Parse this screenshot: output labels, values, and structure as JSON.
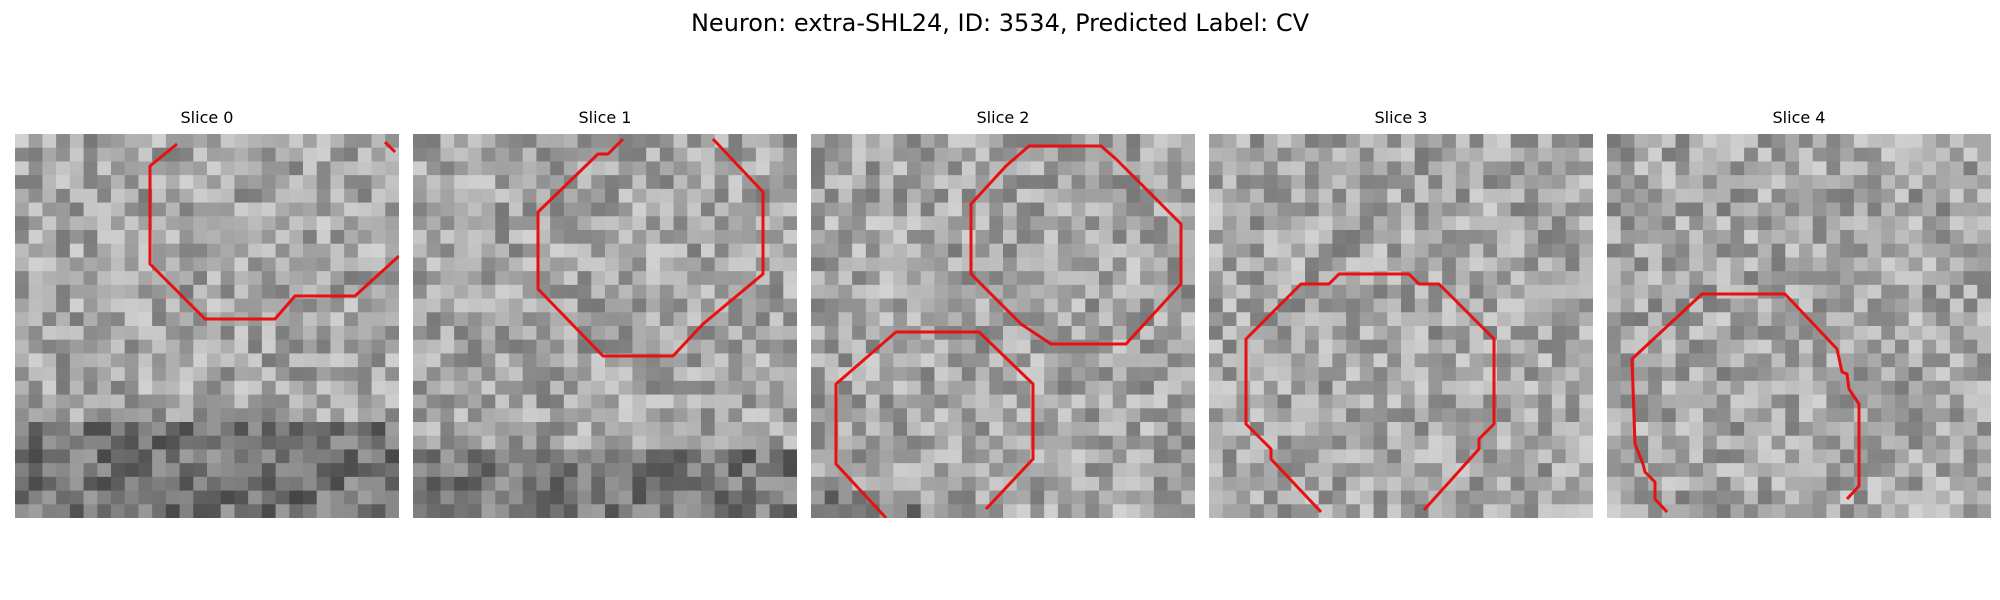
{
  "figure": {
    "title": "Neuron: extra-SHL24, ID: 3534, Predicted Label: CV"
  },
  "colors": {
    "contour": "#e81010",
    "background": "#ffffff",
    "colormap": "gray"
  },
  "slices": [
    {
      "title": "Slice 0"
    },
    {
      "title": "Slice 1"
    },
    {
      "title": "Slice 2"
    },
    {
      "title": "Slice 3"
    },
    {
      "title": "Slice 4"
    }
  ]
}
